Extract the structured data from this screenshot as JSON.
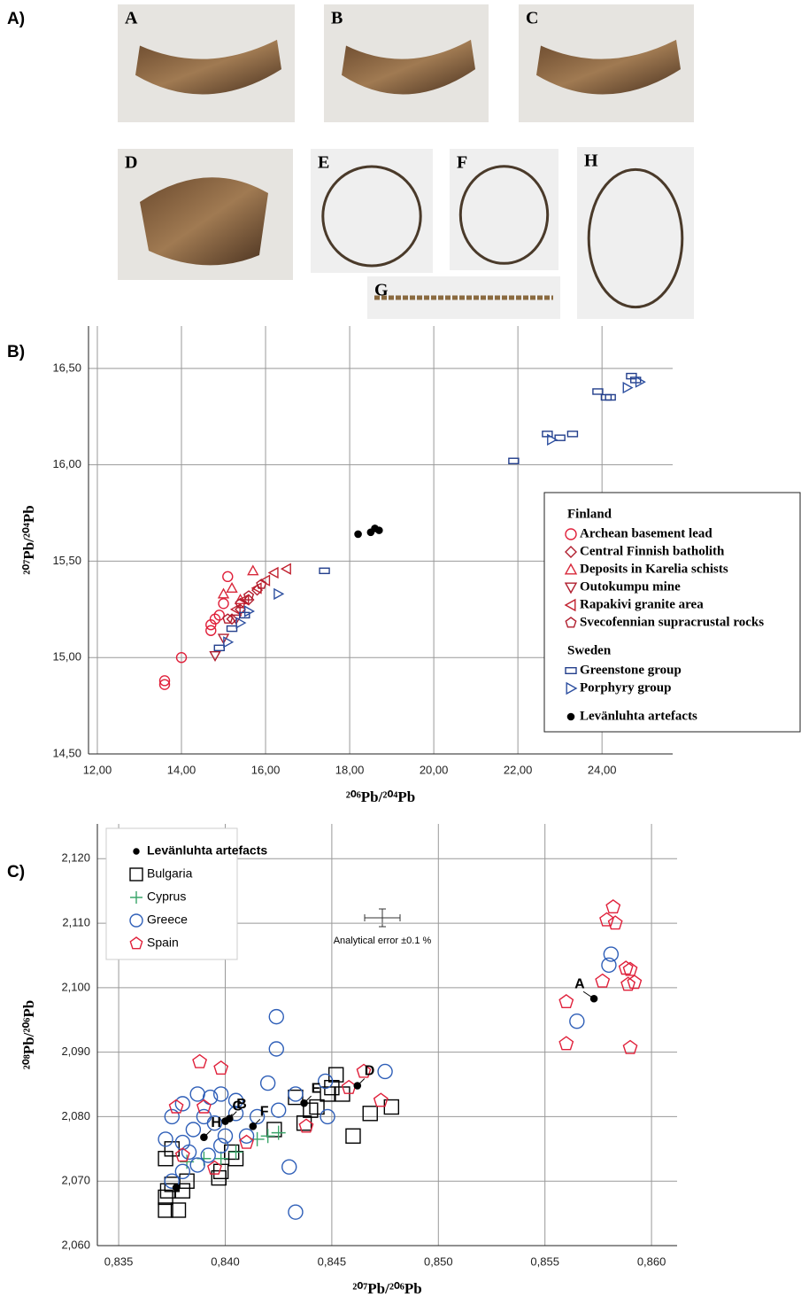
{
  "panel_labels": [
    "A)",
    "B)",
    "C)"
  ],
  "photos": [
    "A",
    "B",
    "C",
    "D",
    "E",
    "F",
    "G",
    "H"
  ],
  "chart_data": [
    {
      "type": "scatter",
      "xlabel": "²⁰⁶Pb/²⁰⁴Pb",
      "ylabel": "²⁰⁷Pb/²⁰⁴Pb",
      "xlim": [
        11.79,
        25.68
      ],
      "ylim": [
        14.5,
        16.72
      ],
      "xticks": [
        {
          "value": 12,
          "label": "12,00"
        },
        {
          "value": 14,
          "label": "14,00"
        },
        {
          "value": 16,
          "label": "16,00"
        },
        {
          "value": 18,
          "label": "18,00"
        },
        {
          "value": 20,
          "label": "20,00"
        },
        {
          "value": 22,
          "label": "22,00"
        },
        {
          "value": 24,
          "label": "24,00"
        }
      ],
      "yticks": [
        {
          "value": 14.5,
          "label": "14,50"
        },
        {
          "value": 15,
          "label": "15,00"
        },
        {
          "value": 15.5,
          "label": "15,50"
        },
        {
          "value": 16,
          "label": "16,00"
        },
        {
          "value": 16.5,
          "label": "16,50"
        }
      ],
      "grid": true,
      "legend": "right",
      "groups": [
        {
          "name": "Finland",
          "series": [
            {
              "name": "Archean basement lead",
              "color": "#e0203a",
              "marker": "circle",
              "x": [
                13.6,
                13.6,
                14.0,
                14.7,
                14.8,
                14.9,
                15.1,
                15.0,
                14.7
              ],
              "y": [
                14.88,
                14.86,
                15.0,
                15.17,
                15.2,
                15.22,
                15.42,
                15.28,
                15.14
              ]
            },
            {
              "name": "Central Finnish batholith",
              "color": "#b01e2e",
              "marker": "diamond",
              "x": [
                15.2,
                15.4,
                15.6,
                15.8
              ],
              "y": [
                15.2,
                15.25,
                15.3,
                15.35
              ]
            },
            {
              "name": "Deposits in Karelia schists",
              "color": "#d8283a",
              "marker": "triangle-up",
              "x": [
                15.0,
                15.2,
                15.7,
                15.4
              ],
              "y": [
                15.33,
                15.36,
                15.45,
                15.3
              ]
            },
            {
              "name": "Outokumpu mine",
              "color": "#b01e2e",
              "marker": "triangle-down",
              "x": [
                14.8,
                15.0,
                15.3
              ],
              "y": [
                15.01,
                15.1,
                15.2
              ]
            },
            {
              "name": "Rapakivi granite area",
              "color": "#c0202e",
              "marker": "triangle-left",
              "x": [
                15.5,
                15.8,
                16.0,
                16.2,
                16.5,
                15.3
              ],
              "y": [
                15.3,
                15.36,
                15.4,
                15.44,
                15.46,
                15.25
              ]
            },
            {
              "name": "Svecofennian supracrustal rocks",
              "color": "#b01e2e",
              "marker": "pentagon",
              "x": [
                15.1,
                15.4,
                15.6,
                15.9
              ],
              "y": [
                15.2,
                15.28,
                15.32,
                15.38
              ]
            }
          ]
        },
        {
          "name": "Sweden",
          "series": [
            {
              "name": "Greenstone group",
              "color": "#233f8c",
              "marker": "rect",
              "x": [
                14.9,
                15.2,
                15.5,
                17.4,
                21.9,
                22.7,
                23.0,
                23.3,
                23.9,
                24.1,
                24.2,
                24.7,
                24.8
              ],
              "y": [
                15.05,
                15.15,
                15.22,
                15.45,
                16.02,
                16.16,
                16.14,
                16.16,
                16.38,
                16.35,
                16.35,
                16.46,
                16.44
              ]
            },
            {
              "name": "Porphyry group",
              "color": "#2d4fa0",
              "marker": "triangle-right",
              "x": [
                15.1,
                15.4,
                15.6,
                16.3,
                22.8,
                24.6,
                24.9
              ],
              "y": [
                15.08,
                15.18,
                15.24,
                15.33,
                16.13,
                16.4,
                16.43
              ]
            }
          ]
        },
        {
          "series": [
            {
              "name": "Levänluhta artefacts",
              "color": "#000000",
              "marker": "dot",
              "x": [
                18.2,
                18.5,
                18.6,
                18.7
              ],
              "y": [
                15.64,
                15.65,
                15.67,
                15.66
              ]
            }
          ]
        }
      ]
    },
    {
      "type": "scatter",
      "xlabel": "²⁰⁷Pb/²⁰⁶Pb",
      "ylabel": "²⁰⁸Pb/²⁰⁶Pb",
      "xlim": [
        0.834,
        0.8612
      ],
      "ylim": [
        2.06,
        2.1254
      ],
      "xticks": [
        {
          "value": 0.835,
          "label": "0,835"
        },
        {
          "value": 0.84,
          "label": "0,840"
        },
        {
          "value": 0.845,
          "label": "0,845"
        },
        {
          "value": 0.85,
          "label": "0,850"
        },
        {
          "value": 0.855,
          "label": "0,855"
        },
        {
          "value": 0.86,
          "label": "0,860"
        }
      ],
      "yticks": [
        {
          "value": 2.06,
          "label": "2,060"
        },
        {
          "value": 2.07,
          "label": "2,070"
        },
        {
          "value": 2.08,
          "label": "2,080"
        },
        {
          "value": 2.09,
          "label": "2,090"
        },
        {
          "value": 2.1,
          "label": "2,100"
        },
        {
          "value": 2.11,
          "label": "2,110"
        },
        {
          "value": 2.12,
          "label": "2,120"
        }
      ],
      "grid": true,
      "legend": "upper left",
      "annotation": "Analytical error ±0.1 %",
      "series": [
        {
          "name": "Bulgaria",
          "color": "#000000",
          "marker": "rect",
          "x": [
            0.8372,
            0.8372,
            0.8373,
            0.8378,
            0.838,
            0.8375,
            0.8382,
            0.8372,
            0.8375,
            0.8397,
            0.8398,
            0.8405,
            0.8403,
            0.8423,
            0.8433,
            0.8437,
            0.844,
            0.8443,
            0.8448,
            0.845,
            0.8452,
            0.8455,
            0.846,
            0.8468,
            0.8478
          ],
          "y": [
            2.0655,
            2.0675,
            2.0685,
            2.0655,
            2.0685,
            2.0695,
            2.07,
            2.0735,
            2.075,
            2.0705,
            2.0715,
            2.0735,
            2.0745,
            2.078,
            2.083,
            2.079,
            2.081,
            2.0815,
            2.0835,
            2.0845,
            2.0865,
            2.0835,
            2.077,
            2.0805,
            2.0815
          ]
        },
        {
          "name": "Cyprus",
          "color": "#3aa56a",
          "marker": "plus",
          "x": [
            0.8382,
            0.839,
            0.8398,
            0.8405,
            0.8415,
            0.842,
            0.8425
          ],
          "y": [
            2.073,
            2.0735,
            2.0735,
            2.0745,
            2.0765,
            2.077,
            2.0775
          ]
        },
        {
          "name": "Greece",
          "color": "#2f5fb8",
          "marker": "circle",
          "x": [
            0.8424,
            0.8424,
            0.842,
            0.8433,
            0.8447,
            0.8475,
            0.8448,
            0.843,
            0.8433,
            0.8425,
            0.8415,
            0.8405,
            0.8398,
            0.8393,
            0.8387,
            0.838,
            0.8375,
            0.8372,
            0.838,
            0.8385,
            0.839,
            0.8395,
            0.84,
            0.8392,
            0.8387,
            0.838,
            0.8375,
            0.841,
            0.8405,
            0.8565,
            0.858,
            0.8581,
            0.8398,
            0.8383
          ],
          "y": [
            2.0955,
            2.0905,
            2.0852,
            2.0835,
            2.0855,
            2.087,
            2.08,
            2.0722,
            2.0652,
            2.081,
            2.08,
            2.0825,
            2.0835,
            2.083,
            2.0835,
            2.082,
            2.08,
            2.0765,
            2.076,
            2.078,
            2.08,
            2.079,
            2.077,
            2.074,
            2.0725,
            2.0715,
            2.07,
            2.077,
            2.0805,
            2.0948,
            2.1035,
            2.1052,
            2.0755,
            2.0745
          ]
        },
        {
          "name": "Spain",
          "color": "#e0203a",
          "marker": "pentagon",
          "x": [
            0.8388,
            0.8398,
            0.8377,
            0.839,
            0.841,
            0.8395,
            0.838,
            0.8438,
            0.8458,
            0.8465,
            0.8473,
            0.856,
            0.856,
            0.8577,
            0.8579,
            0.8582,
            0.8583,
            0.8588,
            0.859,
            0.8589,
            0.8592,
            0.859
          ],
          "y": [
            2.0885,
            2.0875,
            2.0815,
            2.0815,
            2.076,
            2.072,
            2.074,
            2.0785,
            2.0845,
            2.087,
            2.0825,
            2.0978,
            2.0913,
            2.101,
            2.1105,
            2.1125,
            2.11,
            2.103,
            2.1028,
            2.1005,
            2.1008,
            2.0907
          ]
        },
        {
          "name": "Levänluhta artefacts",
          "color": "#000000",
          "marker": "dot",
          "x": [
            0.8573,
            0.8402,
            0.84,
            0.8462,
            0.8437,
            0.8413,
            0.839,
            0.8377
          ],
          "y": [
            2.0983,
            2.0797,
            2.0793,
            2.0848,
            2.0821,
            2.0785,
            2.0768,
            2.069
          ],
          "point_labels": [
            "A",
            "B",
            "C",
            "D",
            "E",
            "F",
            "H",
            null
          ]
        }
      ]
    }
  ]
}
